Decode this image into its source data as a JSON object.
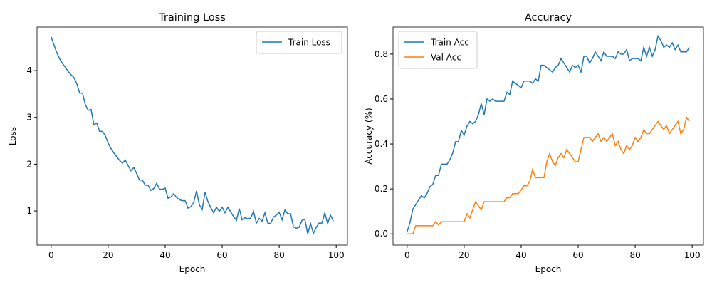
{
  "chart_data": [
    {
      "type": "line",
      "title": "Training Loss",
      "x_label": "Epoch",
      "y_label": "Loss",
      "x": [
        0,
        1,
        2,
        3,
        4,
        5,
        6,
        7,
        8,
        9,
        10,
        11,
        12,
        13,
        14,
        15,
        16,
        17,
        18,
        19,
        20,
        21,
        22,
        23,
        24,
        25,
        26,
        27,
        28,
        29,
        30,
        31,
        32,
        33,
        34,
        35,
        36,
        37,
        38,
        39,
        40,
        41,
        42,
        43,
        44,
        45,
        46,
        47,
        48,
        49,
        50,
        51,
        52,
        53,
        54,
        55,
        56,
        57,
        58,
        59,
        60,
        61,
        62,
        63,
        64,
        65,
        66,
        67,
        68,
        69,
        70,
        71,
        72,
        73,
        74,
        75,
        76,
        77,
        78,
        79,
        80,
        81,
        82,
        83,
        84,
        85,
        86,
        87,
        88,
        89,
        90,
        91,
        92,
        93,
        94,
        95,
        96,
        97,
        98,
        99
      ],
      "series": [
        {
          "name": "Train Loss",
          "color": "#1f77b4",
          "values": [
            4.72,
            4.55,
            4.38,
            4.25,
            4.15,
            4.07,
            3.98,
            3.91,
            3.85,
            3.72,
            3.52,
            3.52,
            3.27,
            3.15,
            3.17,
            2.84,
            2.88,
            2.7,
            2.7,
            2.61,
            2.45,
            2.33,
            2.24,
            2.16,
            2.08,
            2.02,
            2.09,
            1.97,
            1.86,
            1.93,
            1.8,
            1.66,
            1.66,
            1.55,
            1.55,
            1.44,
            1.48,
            1.59,
            1.47,
            1.46,
            1.49,
            1.27,
            1.3,
            1.37,
            1.29,
            1.24,
            1.22,
            1.22,
            1.06,
            1.09,
            1.18,
            1.43,
            1.13,
            1.03,
            1.4,
            1.2,
            1.07,
            0.96,
            1.08,
            0.99,
            1.08,
            0.96,
            1.08,
            0.98,
            0.88,
            0.8,
            1.05,
            0.81,
            0.86,
            0.83,
            0.85,
            0.99,
            0.74,
            0.84,
            0.78,
            0.96,
            0.74,
            0.73,
            0.87,
            0.91,
            0.97,
            0.81,
            1.02,
            0.94,
            0.94,
            0.66,
            0.63,
            0.65,
            0.8,
            0.82,
            0.51,
            0.73,
            0.52,
            0.65,
            0.74,
            0.74,
            0.96,
            0.73,
            0.91,
            0.78
          ]
        }
      ],
      "xlim": [
        -4.95,
        103.95
      ],
      "ylim": [
        0.27,
        4.93
      ],
      "xticks": [
        0,
        20,
        40,
        60,
        80,
        100
      ],
      "yticks": [
        1,
        2,
        3,
        4
      ],
      "legend": "upper right"
    },
    {
      "type": "line",
      "title": "Accuracy",
      "x_label": "Epoch",
      "y_label": "Accuracy (%)",
      "x": [
        0,
        1,
        2,
        3,
        4,
        5,
        6,
        7,
        8,
        9,
        10,
        11,
        12,
        13,
        14,
        15,
        16,
        17,
        18,
        19,
        20,
        21,
        22,
        23,
        24,
        25,
        26,
        27,
        28,
        29,
        30,
        31,
        32,
        33,
        34,
        35,
        36,
        37,
        38,
        39,
        40,
        41,
        42,
        43,
        44,
        45,
        46,
        47,
        48,
        49,
        50,
        51,
        52,
        53,
        54,
        55,
        56,
        57,
        58,
        59,
        60,
        61,
        62,
        63,
        64,
        65,
        66,
        67,
        68,
        69,
        70,
        71,
        72,
        73,
        74,
        75,
        76,
        77,
        78,
        79,
        80,
        81,
        82,
        83,
        84,
        85,
        86,
        87,
        88,
        89,
        90,
        91,
        92,
        93,
        94,
        95,
        96,
        97,
        98,
        99
      ],
      "series": [
        {
          "name": "Train Acc",
          "color": "#1f77b4",
          "values": [
            0.01,
            0.05,
            0.11,
            0.13,
            0.15,
            0.17,
            0.16,
            0.18,
            0.21,
            0.22,
            0.26,
            0.26,
            0.31,
            0.31,
            0.31,
            0.33,
            0.36,
            0.41,
            0.41,
            0.46,
            0.44,
            0.48,
            0.5,
            0.49,
            0.5,
            0.53,
            0.58,
            0.53,
            0.6,
            0.59,
            0.6,
            0.59,
            0.59,
            0.59,
            0.59,
            0.63,
            0.62,
            0.68,
            0.67,
            0.66,
            0.65,
            0.68,
            0.68,
            0.68,
            0.67,
            0.69,
            0.68,
            0.75,
            0.75,
            0.74,
            0.73,
            0.72,
            0.74,
            0.75,
            0.78,
            0.76,
            0.74,
            0.72,
            0.75,
            0.74,
            0.75,
            0.72,
            0.79,
            0.79,
            0.76,
            0.78,
            0.81,
            0.79,
            0.77,
            0.81,
            0.79,
            0.79,
            0.79,
            0.78,
            0.81,
            0.8,
            0.8,
            0.82,
            0.77,
            0.78,
            0.78,
            0.78,
            0.77,
            0.83,
            0.79,
            0.83,
            0.79,
            0.82,
            0.88,
            0.86,
            0.83,
            0.84,
            0.83,
            0.85,
            0.82,
            0.84,
            0.81,
            0.81,
            0.81,
            0.83
          ]
        },
        {
          "name": "Val Acc",
          "color": "#ff7f0e",
          "values": [
            0,
            0,
            0,
            0.036,
            0.036,
            0.036,
            0.036,
            0.036,
            0.036,
            0.036,
            0.054,
            0.04,
            0.054,
            0.054,
            0.054,
            0.054,
            0.054,
            0.054,
            0.054,
            0.054,
            0.054,
            0.089,
            0.071,
            0.107,
            0.143,
            0.125,
            0.107,
            0.143,
            0.143,
            0.143,
            0.143,
            0.143,
            0.143,
            0.143,
            0.143,
            0.161,
            0.161,
            0.179,
            0.179,
            0.179,
            0.196,
            0.214,
            0.214,
            0.232,
            0.286,
            0.25,
            0.25,
            0.25,
            0.25,
            0.321,
            0.357,
            0.321,
            0.304,
            0.339,
            0.357,
            0.339,
            0.375,
            0.357,
            0.339,
            0.321,
            0.321,
            0.375,
            0.429,
            0.429,
            0.429,
            0.411,
            0.429,
            0.446,
            0.411,
            0.429,
            0.411,
            0.429,
            0.446,
            0.393,
            0.411,
            0.375,
            0.357,
            0.393,
            0.375,
            0.393,
            0.429,
            0.411,
            0.429,
            0.464,
            0.446,
            0.446,
            0.464,
            0.482,
            0.5,
            0.482,
            0.464,
            0.482,
            0.446,
            0.464,
            0.482,
            0.5,
            0.446,
            0.464,
            0.518,
            0.5
          ]
        }
      ],
      "xlim": [
        -4.95,
        103.95
      ],
      "ylim": [
        -0.05,
        0.92
      ],
      "xticks": [
        0,
        20,
        40,
        60,
        80,
        100
      ],
      "yticks": [
        {
          "value": 0,
          "label": "0.0"
        },
        0.2,
        0.4,
        0.6,
        0.8
      ],
      "legend": "upper left"
    }
  ]
}
